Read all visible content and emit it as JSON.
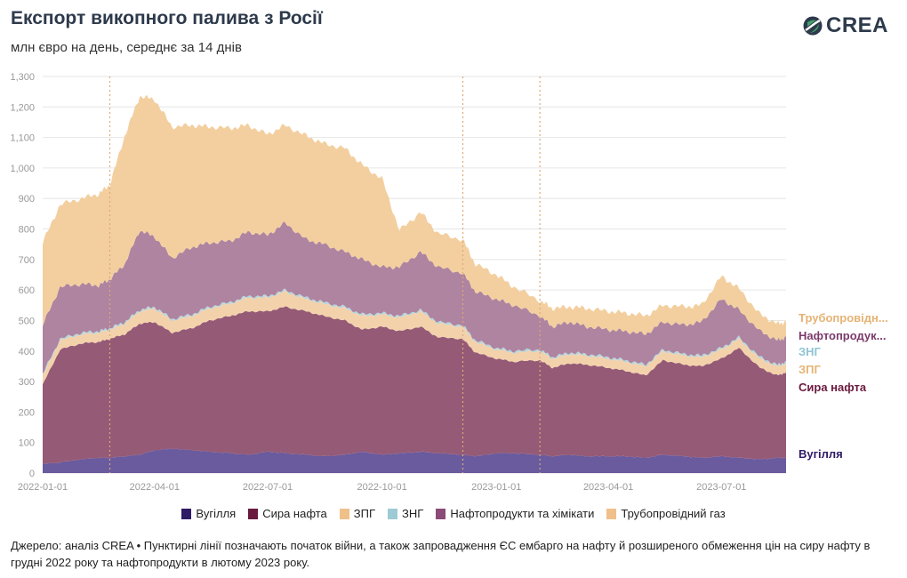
{
  "header": {
    "title": "Експорт викопного палива з Росії",
    "subtitle": "млн євро на день, середнє за 14 днів"
  },
  "logo": {
    "text": "CREA",
    "icon": "crea-leaf-icon"
  },
  "legend": [
    {
      "label": "Вугілля",
      "color": "#2e1a66"
    },
    {
      "label": "Сира нафта",
      "color": "#6a1a3f"
    },
    {
      "label": "ЗПГ",
      "color": "#f0c08a"
    },
    {
      "label": "ЗНГ",
      "color": "#9ecad6"
    },
    {
      "label": "Нафтопродукти та хімікати",
      "color": "#8b4a78"
    },
    {
      "label": "Трубопровідний газ",
      "color": "#f0c08a"
    }
  ],
  "source": "Джерело: аналіз CREA • Пунктирні лінії позначають початок війни, а також запровадження ЄС ембарго на нафту й розширеного обмеження цін на сиру нафту в грудні 2022 року та нафтопродукти в лютому 2023 року.",
  "chart_data": {
    "type": "area",
    "stacked": true,
    "x": [
      "2022-01-01",
      "2022-01-15",
      "2022-02-01",
      "2022-02-15",
      "2022-02-24",
      "2022-03-08",
      "2022-03-20",
      "2022-04-01",
      "2022-04-15",
      "2022-05-01",
      "2022-05-15",
      "2022-06-01",
      "2022-06-15",
      "2022-07-01",
      "2022-07-15",
      "2022-08-01",
      "2022-08-15",
      "2022-09-01",
      "2022-09-15",
      "2022-10-01",
      "2022-10-15",
      "2022-11-01",
      "2022-11-15",
      "2022-12-05",
      "2022-12-15",
      "2023-01-01",
      "2023-01-15",
      "2023-02-05",
      "2023-02-15",
      "2023-03-01",
      "2023-03-15",
      "2023-04-01",
      "2023-04-15",
      "2023-05-01",
      "2023-05-15",
      "2023-06-01",
      "2023-06-15",
      "2023-07-01",
      "2023-07-15",
      "2023-08-01",
      "2023-08-15",
      "2023-08-22"
    ],
    "ylim": [
      0,
      1300
    ],
    "yticks": [
      0,
      100,
      200,
      300,
      400,
      500,
      600,
      700,
      800,
      900,
      1000,
      1100,
      1200,
      1300
    ],
    "ytick_labels": [
      "0",
      "100",
      "200",
      "300",
      "400",
      "500",
      "600",
      "700",
      "800",
      "900",
      "1,000",
      "1,100",
      "1,200",
      "1,300"
    ],
    "xticks": [
      "2022-01-01",
      "2022-04-01",
      "2022-07-01",
      "2022-10-01",
      "2023-01-01",
      "2023-04-01",
      "2023-07-01"
    ],
    "xtick_labels": [
      "2022-01-01",
      "2022-04-01",
      "2022-07-01",
      "2022-10-01",
      "2023-01-01",
      "2023-04-01",
      "2023-07-01"
    ],
    "vlines": [
      "2022-02-24",
      "2022-12-05",
      "2023-02-05"
    ],
    "grid": true,
    "series": [
      {
        "name": "Вугілля",
        "color": "#6a5a9e",
        "values": [
          30,
          35,
          45,
          50,
          50,
          55,
          60,
          75,
          80,
          75,
          70,
          65,
          60,
          70,
          65,
          60,
          55,
          60,
          70,
          60,
          65,
          70,
          65,
          60,
          55,
          65,
          65,
          60,
          55,
          60,
          55,
          55,
          55,
          50,
          60,
          55,
          50,
          55,
          50,
          45,
          50,
          50
        ]
      },
      {
        "name": "Сира нафта",
        "color": "#955a76",
        "values": [
          260,
          370,
          380,
          380,
          390,
          400,
          430,
          420,
          380,
          400,
          430,
          450,
          470,
          460,
          480,
          470,
          460,
          440,
          400,
          420,
          400,
          410,
          380,
          380,
          340,
          310,
          300,
          310,
          290,
          300,
          300,
          290,
          280,
          270,
          310,
          300,
          300,
          320,
          360,
          300,
          270,
          280
        ]
      },
      {
        "name": "ЗПГ",
        "color": "#f3d2ab",
        "values": [
          30,
          30,
          30,
          30,
          30,
          35,
          40,
          45,
          40,
          40,
          40,
          40,
          45,
          45,
          50,
          40,
          40,
          40,
          45,
          40,
          45,
          50,
          45,
          40,
          35,
          30,
          30,
          30,
          30,
          30,
          30,
          30,
          30,
          30,
          30,
          30,
          30,
          30,
          30,
          30,
          30,
          30
        ]
      },
      {
        "name": "ЗНГ",
        "color": "#b6d6de",
        "values": [
          5,
          5,
          5,
          5,
          5,
          5,
          5,
          5,
          5,
          5,
          5,
          5,
          5,
          5,
          5,
          5,
          5,
          5,
          5,
          5,
          5,
          5,
          5,
          5,
          5,
          5,
          5,
          5,
          5,
          5,
          5,
          5,
          5,
          5,
          5,
          5,
          5,
          5,
          5,
          5,
          5,
          5
        ]
      },
      {
        "name": "Нафтопродукти та хімікати",
        "color": "#ae84a0",
        "values": [
          160,
          170,
          160,
          150,
          160,
          190,
          260,
          230,
          200,
          220,
          210,
          200,
          210,
          200,
          220,
          190,
          190,
          180,
          180,
          150,
          160,
          190,
          180,
          170,
          160,
          160,
          150,
          110,
          100,
          100,
          90,
          90,
          95,
          100,
          90,
          95,
          110,
          160,
          90,
          85,
          80,
          80
        ]
      },
      {
        "name": "Трубопровідний газ",
        "color": "#f3cf9f",
        "values": [
          270,
          270,
          280,
          300,
          310,
          420,
          440,
          450,
          430,
          400,
          380,
          370,
          350,
          330,
          320,
          340,
          330,
          340,
          310,
          290,
          120,
          130,
          110,
          110,
          90,
          80,
          60,
          50,
          60,
          50,
          60,
          60,
          60,
          60,
          55,
          60,
          55,
          75,
          70,
          55,
          55,
          50
        ]
      }
    ],
    "end_labels": [
      {
        "text": "Трубопровідн...",
        "color": "#e6b375"
      },
      {
        "text": "Нафтопродук...",
        "color": "#7b3a6b"
      },
      {
        "text": "ЗНГ",
        "color": "#8fc4d2"
      },
      {
        "text": "ЗПГ",
        "color": "#e6b375"
      },
      {
        "text": "Сира нафта",
        "color": "#6a1a3f"
      },
      {
        "text": "Вугілля",
        "color": "#2e1a66"
      }
    ]
  }
}
